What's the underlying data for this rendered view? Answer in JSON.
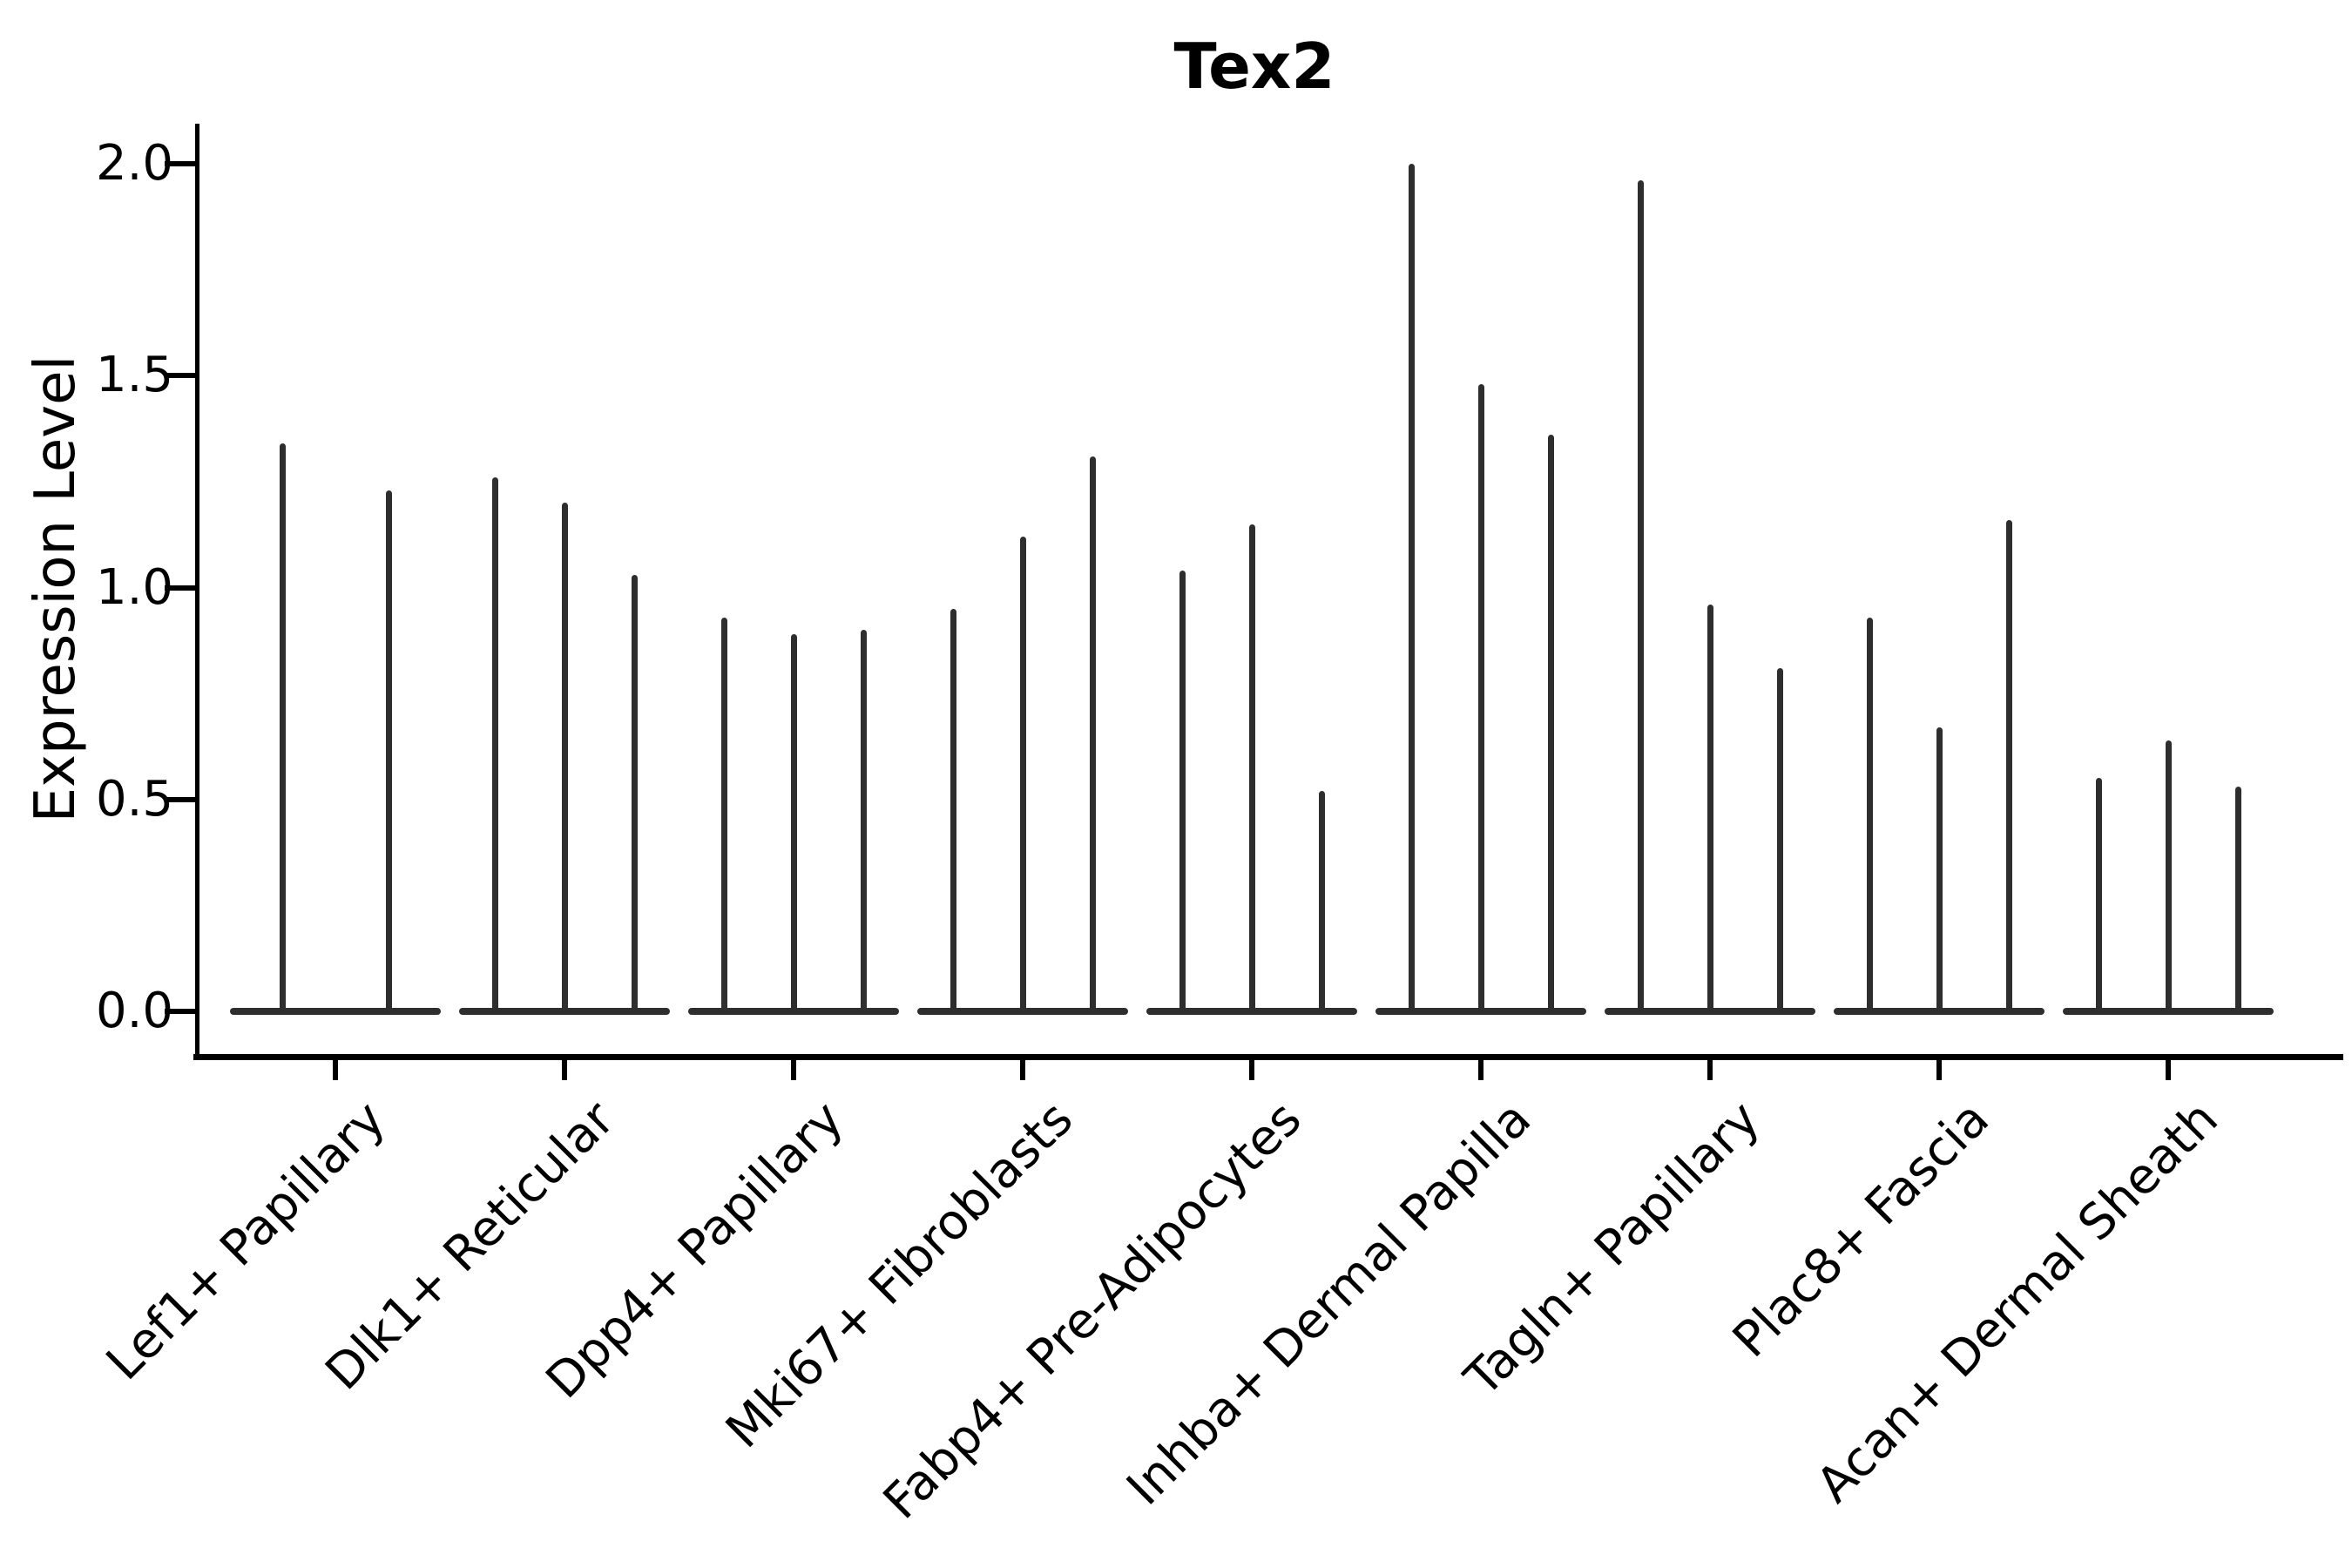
{
  "chart_data": {
    "type": "violin",
    "title": "Tex2",
    "ylabel": "Expression Level",
    "xlabel": "",
    "ylim": [
      0.0,
      2.0
    ],
    "yticks": [
      "0.0",
      "0.5",
      "1.0",
      "1.5",
      "2.0"
    ],
    "ytick_values": [
      0.0,
      0.5,
      1.0,
      1.5,
      2.0
    ],
    "grid": false,
    "legend": "none",
    "x_label_rotation_deg": 45,
    "violin_shape_note": "sparse single-cell expression: each violin is a wide flat base at 0 with a needle-thin spike up to its maximum expression value",
    "categories": [
      "Lef1+ Papillary",
      "Dlk1+ Reticular",
      "Dpp4+ Papillary",
      "Mki67+ Fibroblasts",
      "Fabp4+ Pre-Adipocytes",
      "Inhba+ Dermal Papilla",
      "Tagln+ Papillary",
      "Plac8+ Fascia",
      "Acan+ Dermal Sheath"
    ],
    "series": [
      {
        "category": "Lef1+ Papillary",
        "violin_maxima": [
          1.34,
          1.23
        ]
      },
      {
        "category": "Dlk1+ Reticular",
        "violin_maxima": [
          1.26,
          1.2,
          1.03
        ]
      },
      {
        "category": "Dpp4+ Papillary",
        "violin_maxima": [
          0.93,
          0.89,
          0.9
        ]
      },
      {
        "category": "Mki67+ Fibroblasts",
        "violin_maxima": [
          0.95,
          1.12,
          1.31
        ]
      },
      {
        "category": "Fabp4+ Pre-Adipocytes",
        "violin_maxima": [
          1.04,
          1.15,
          0.52
        ]
      },
      {
        "category": "Inhba+ Dermal Papilla",
        "violin_maxima": [
          2.0,
          1.48,
          1.36
        ]
      },
      {
        "category": "Tagln+ Papillary",
        "violin_maxima": [
          1.96,
          0.96,
          0.81
        ]
      },
      {
        "category": "Plac8+ Fascia",
        "violin_maxima": [
          0.93,
          0.67,
          1.16
        ]
      },
      {
        "category": "Acan+ Dermal Sheath",
        "violin_maxima": [
          0.55,
          0.64,
          0.53
        ]
      }
    ],
    "colors": {
      "violin": "#2e2e2e",
      "axis": "#000000",
      "text": "#000000",
      "background": "#ffffff"
    }
  }
}
